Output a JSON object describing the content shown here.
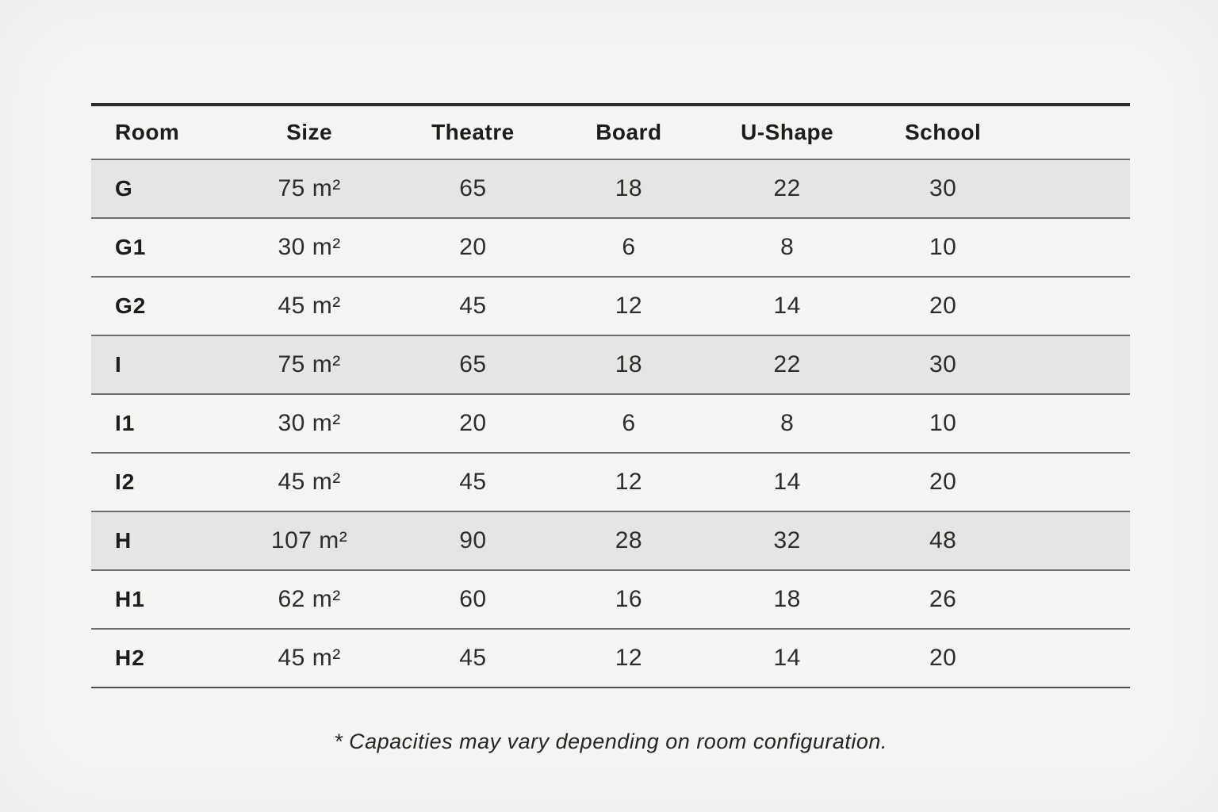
{
  "table": {
    "headers": {
      "room": "Room",
      "size": "Size",
      "theatre": "Theatre",
      "board": "Board",
      "ushape": "U-Shape",
      "school": "School"
    },
    "rows": [
      {
        "room": "G",
        "size": "75 m²",
        "theatre": "65",
        "board": "18",
        "ushape": "22",
        "school": "30"
      },
      {
        "room": "G1",
        "size": "30 m²",
        "theatre": "20",
        "board": "6",
        "ushape": "8",
        "school": "10"
      },
      {
        "room": "G2",
        "size": "45 m²",
        "theatre": "45",
        "board": "12",
        "ushape": "14",
        "school": "20"
      },
      {
        "room": "I",
        "size": "75 m²",
        "theatre": "65",
        "board": "18",
        "ushape": "22",
        "school": "30"
      },
      {
        "room": "I1",
        "size": "30 m²",
        "theatre": "20",
        "board": "6",
        "ushape": "8",
        "school": "10"
      },
      {
        "room": "I2",
        "size": "45 m²",
        "theatre": "45",
        "board": "12",
        "ushape": "14",
        "school": "20"
      },
      {
        "room": "H",
        "size": "107 m²",
        "theatre": "90",
        "board": "28",
        "ushape": "32",
        "school": "48"
      },
      {
        "room": "H1",
        "size": "62 m²",
        "theatre": "60",
        "board": "16",
        "ushape": "18",
        "school": "26"
      },
      {
        "room": "H2",
        "size": "45 m²",
        "theatre": "45",
        "board": "12",
        "ushape": "14",
        "school": "20"
      }
    ]
  },
  "footnote": "* Capacities may vary depending on room configuration.",
  "colors": {
    "page_background": "#f5f4f2",
    "shaded_row": "#e7e5e3",
    "rule_dark": "#2b2a28",
    "rule_light": "#6f6e6c",
    "text": "#1d1c1a"
  }
}
